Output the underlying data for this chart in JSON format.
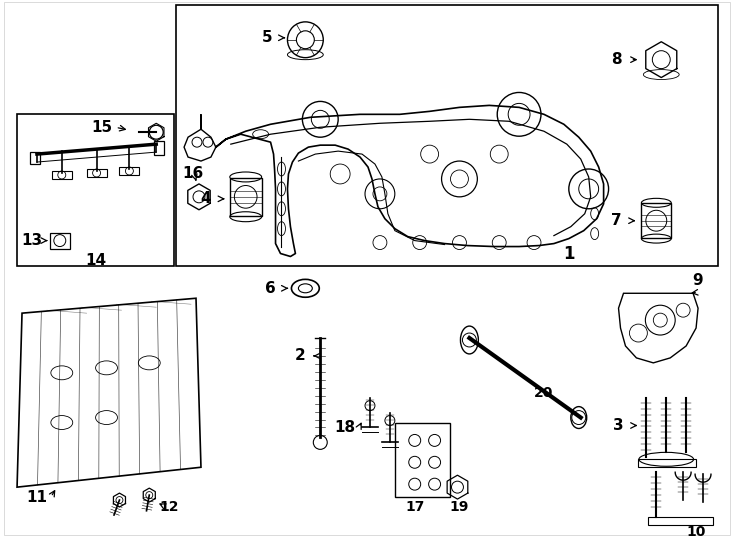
{
  "background_color": "#ffffff",
  "line_color": "#000000",
  "text_color": "#000000",
  "fig_width": 7.34,
  "fig_height": 5.4,
  "dpi": 100
}
